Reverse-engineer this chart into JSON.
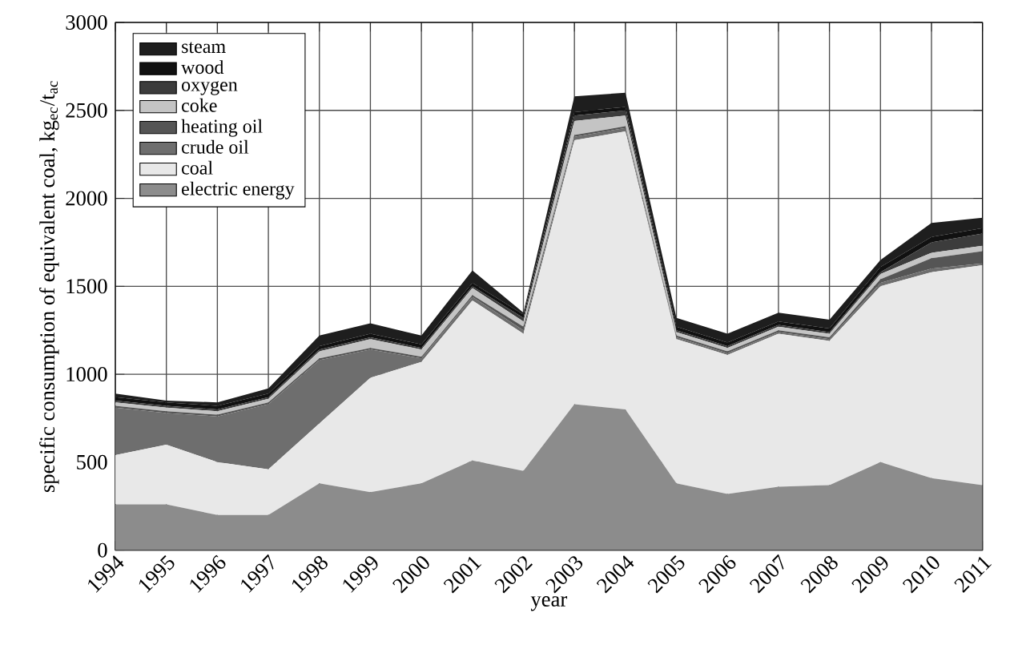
{
  "chart_data": {
    "type": "area",
    "stacked": true,
    "xlabel": "year",
    "ylabel": "specific consumption of equivalent coal, kg$_{ec}$/t$_{ac}$",
    "x": [
      1994,
      1995,
      1996,
      1997,
      1998,
      1999,
      2000,
      2001,
      2002,
      2003,
      2004,
      2005,
      2006,
      2007,
      2008,
      2009,
      2010,
      2011
    ],
    "xlim": [
      1994,
      2011
    ],
    "xticks": [
      1994,
      1995,
      1996,
      1997,
      1998,
      1999,
      2000,
      2001,
      2002,
      2003,
      2004,
      2005,
      2006,
      2007,
      2008,
      2009,
      2010,
      2011
    ],
    "ylim": [
      0,
      3000
    ],
    "yticks": [
      0,
      500,
      1000,
      1500,
      2000,
      2500,
      3000
    ],
    "grid": true,
    "legend": "top left",
    "series": [
      {
        "name": "electric energy",
        "color": "#8c8c8c",
        "values": [
          260,
          260,
          200,
          200,
          380,
          330,
          380,
          510,
          450,
          830,
          800,
          380,
          320,
          360,
          370,
          500,
          410,
          370
        ]
      },
      {
        "name": "coal",
        "color": "#e8e8e8",
        "values": [
          280,
          340,
          300,
          260,
          340,
          650,
          690,
          910,
          780,
          1500,
          1580,
          820,
          790,
          870,
          820,
          1000,
          1170,
          1250
        ]
      },
      {
        "name": "crude oil",
        "color": "#6e6e6e",
        "values": [
          270,
          180,
          260,
          370,
          360,
          160,
          20,
          20,
          20,
          20,
          20,
          10,
          10,
          10,
          10,
          20,
          20,
          10
        ]
      },
      {
        "name": "heating oil",
        "color": "#555555",
        "values": [
          10,
          10,
          10,
          10,
          10,
          10,
          10,
          10,
          20,
          10,
          10,
          10,
          10,
          10,
          10,
          20,
          60,
          70
        ]
      },
      {
        "name": "coke",
        "color": "#c4c4c4",
        "values": [
          20,
          20,
          20,
          20,
          40,
          50,
          40,
          40,
          30,
          80,
          60,
          20,
          20,
          20,
          20,
          30,
          30,
          30
        ]
      },
      {
        "name": "oxygen",
        "color": "#3c3c3c",
        "values": [
          10,
          10,
          10,
          10,
          10,
          10,
          10,
          10,
          20,
          30,
          30,
          10,
          10,
          10,
          10,
          10,
          60,
          70
        ]
      },
      {
        "name": "wood",
        "color": "#111111",
        "values": [
          20,
          20,
          20,
          20,
          20,
          20,
          20,
          20,
          20,
          20,
          20,
          20,
          20,
          20,
          20,
          30,
          30,
          30
        ]
      },
      {
        "name": "steam",
        "color": "#1e1e1e",
        "values": [
          20,
          10,
          20,
          30,
          60,
          60,
          50,
          70,
          10,
          90,
          80,
          50,
          50,
          50,
          50,
          40,
          80,
          60
        ]
      }
    ]
  }
}
